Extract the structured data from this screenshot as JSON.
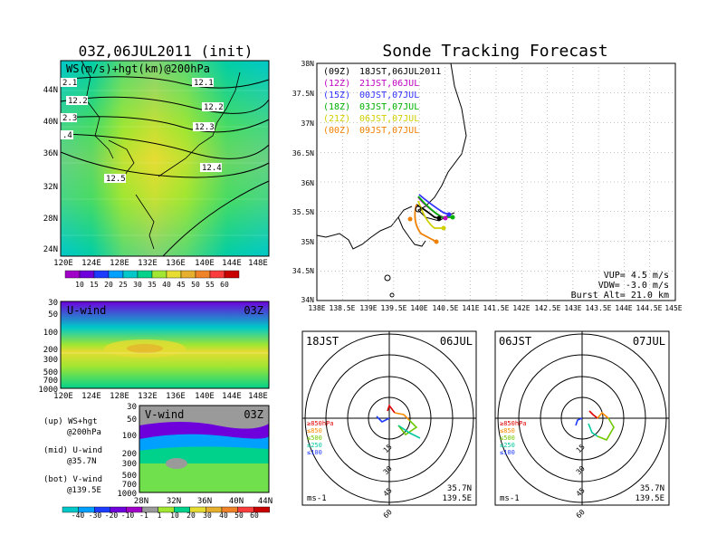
{
  "left": {
    "title": "03Z,06JUL2011 (init)",
    "map_label": "WS(m/s)+hgt(km)@200hPa",
    "contours": [
      "12.1",
      "12.2",
      "12.3",
      "12.4",
      "12.5",
      "2.1",
      "12.2",
      "2.3",
      ".4"
    ],
    "lat_ticks": [
      "44N",
      "40N",
      "36N",
      "32N",
      "28N",
      "24N"
    ],
    "lon_ticks": [
      "120E",
      "124E",
      "128E",
      "132E",
      "136E",
      "140E",
      "144E",
      "148E"
    ],
    "ws_colorbar": [
      "10",
      "15",
      "20",
      "25",
      "30",
      "35",
      "40",
      "45",
      "50",
      "55",
      "60"
    ],
    "ws_colors": [
      "#a000c8",
      "#6e00dc",
      "#1e3cff",
      "#00a0ff",
      "#00c8c8",
      "#00d28c",
      "#a0e632",
      "#e6dc32",
      "#e6af2d",
      "#f08228",
      "#fa3c3c",
      "#c80000"
    ],
    "uwind": {
      "label": "U-wind",
      "time": "03Z",
      "p_ticks": [
        "30",
        "50",
        "100",
        "200",
        "300",
        "500",
        "700",
        "1000"
      ]
    },
    "vwind": {
      "label": "V-wind",
      "time": "03Z",
      "p_ticks": [
        "30",
        "50",
        "100",
        "200",
        "300",
        "500",
        "700",
        "1000"
      ],
      "lat_ticks": [
        "28N",
        "32N",
        "36N",
        "40N",
        "44N"
      ]
    },
    "legend_lines": [
      "(up) WS+hgt",
      "@200hPa",
      "(mid) U-wind",
      "@35.7N",
      "(bot) V-wind",
      "@139.5E"
    ],
    "v_colorbar": [
      "-40",
      "-30",
      "-20",
      "-10",
      "-1",
      "1",
      "10",
      "20",
      "30",
      "40",
      "50",
      "60"
    ]
  },
  "right": {
    "title": "Sonde Tracking Forecast",
    "tracks": [
      {
        "code": "(09Z)",
        "time": "18JST,06JUL2011",
        "color": "#000000"
      },
      {
        "code": "(12Z)",
        "time": "21JST,06JUL",
        "color": "#c000c0"
      },
      {
        "code": "(15Z)",
        "time": "00JST,07JUL",
        "color": "#3030ff"
      },
      {
        "code": "(18Z)",
        "time": "03JST,07JUL",
        "color": "#00b000"
      },
      {
        "code": "(21Z)",
        "time": "06JST,07JUL",
        "color": "#d0d000"
      },
      {
        "code": "(00Z)",
        "time": "09JST,07JUL",
        "color": "#f08000"
      }
    ],
    "lat_ticks": [
      "38N",
      "37.5N",
      "37N",
      "36.5N",
      "36N",
      "35.5N",
      "35N",
      "34.5N",
      "34N"
    ],
    "lon_ticks": [
      "138E",
      "138.5E",
      "139E",
      "139.5E",
      "140E",
      "140.5E",
      "141E",
      "141.5E",
      "142E",
      "142.5E",
      "143E",
      "143.5E",
      "144E",
      "144.5E",
      "145E"
    ],
    "info": [
      "VUP= 4.5 m/s",
      "VDW= -3.0 m/s",
      "Burst Alt= 21.0 km"
    ]
  },
  "hodo1": {
    "time": "18JST",
    "date": "06JUL",
    "rings": [
      "15",
      "30",
      "45",
      "60"
    ],
    "levels": [
      "≥850hPa",
      "≤850",
      "≤500",
      "≤250",
      "≤100"
    ],
    "unit": "ms-1",
    "lat": "35.7N",
    "lon": "139.5E"
  },
  "hodo2": {
    "time": "06JST",
    "date": "07JUL",
    "rings": [
      "15",
      "30",
      "45",
      "60"
    ],
    "levels": [
      "≥850hPa",
      "≤850",
      "≤500",
      "≤250",
      "≤100"
    ],
    "unit": "ms-1",
    "lat": "35.7N",
    "lon": "139.5E"
  }
}
